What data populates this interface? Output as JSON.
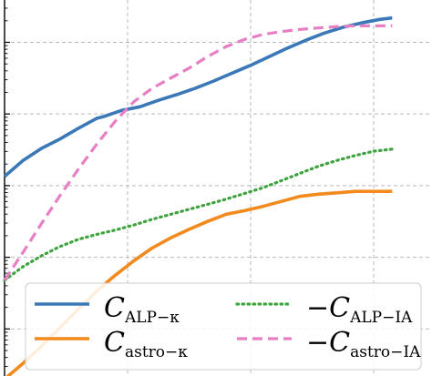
{
  "chart_data": {
    "type": "line",
    "title": "",
    "xlabel": "",
    "ylabel": "",
    "x_gridlines": [
      1,
      2,
      3
    ],
    "y_gridlines": [
      1,
      2,
      3,
      4,
      5
    ],
    "xlim": [
      0,
      3.4
    ],
    "ylim": [
      0,
      5.4
    ],
    "grid": true,
    "legend_location": "lower-center",
    "legend_columns": 2,
    "series": [
      {
        "name": "C_{ALP−κ}",
        "color": "#3a78b8",
        "style": "solid",
        "x": [
          0.0,
          0.15,
          0.3,
          0.45,
          0.6,
          0.75,
          0.8,
          0.95,
          1.1,
          1.25,
          1.4,
          1.55,
          1.7,
          1.85,
          2.0,
          2.15,
          2.3,
          2.45,
          2.6,
          2.75,
          2.9,
          3.05,
          3.15
        ],
        "y": [
          3.13,
          3.35,
          3.52,
          3.65,
          3.8,
          3.94,
          3.96,
          4.05,
          4.1,
          4.19,
          4.27,
          4.36,
          4.46,
          4.57,
          4.68,
          4.8,
          4.92,
          5.03,
          5.13,
          5.21,
          5.27,
          5.32,
          5.34
        ]
      },
      {
        "name": "C_{astro−κ}",
        "color": "#f28a1e",
        "style": "solid",
        "x": [
          0.0,
          0.15,
          0.3,
          0.45,
          0.6,
          0.75,
          0.9,
          1.05,
          1.2,
          1.35,
          1.5,
          1.65,
          1.8,
          1.95,
          2.1,
          2.25,
          2.4,
          2.55,
          2.7,
          2.85,
          3.0,
          3.15
        ],
        "y": [
          0.3,
          0.52,
          0.76,
          1.02,
          1.28,
          1.53,
          1.75,
          1.95,
          2.13,
          2.27,
          2.39,
          2.5,
          2.6,
          2.65,
          2.71,
          2.78,
          2.85,
          2.88,
          2.9,
          2.92,
          2.92,
          2.92
        ]
      },
      {
        "name": "−C_{ALP−IA}",
        "color": "#3fa43f",
        "style": "dotted",
        "x": [
          0.0,
          0.15,
          0.3,
          0.45,
          0.6,
          0.75,
          0.9,
          1.05,
          1.2,
          1.35,
          1.5,
          1.65,
          1.8,
          1.95,
          2.1,
          2.25,
          2.4,
          2.55,
          2.7,
          2.85,
          3.0,
          3.15
        ],
        "y": [
          1.68,
          1.87,
          2.02,
          2.15,
          2.25,
          2.32,
          2.38,
          2.45,
          2.53,
          2.6,
          2.67,
          2.74,
          2.81,
          2.89,
          2.97,
          3.07,
          3.17,
          3.27,
          3.35,
          3.42,
          3.48,
          3.51
        ]
      },
      {
        "name": "−C_{astro−IA}",
        "color": "#e77fc5",
        "style": "dashed",
        "x": [
          0.0,
          0.15,
          0.3,
          0.45,
          0.6,
          0.75,
          0.9,
          1.05,
          1.2,
          1.35,
          1.5,
          1.65,
          1.8,
          1.95,
          2.1,
          2.25,
          2.4,
          2.55,
          2.7,
          2.85,
          3.0,
          3.15
        ],
        "y": [
          1.68,
          2.07,
          2.47,
          2.86,
          3.23,
          3.58,
          3.9,
          4.17,
          4.36,
          4.5,
          4.64,
          4.8,
          4.94,
          5.04,
          5.11,
          5.15,
          5.18,
          5.2,
          5.22,
          5.23,
          5.23,
          5.23
        ]
      }
    ]
  }
}
